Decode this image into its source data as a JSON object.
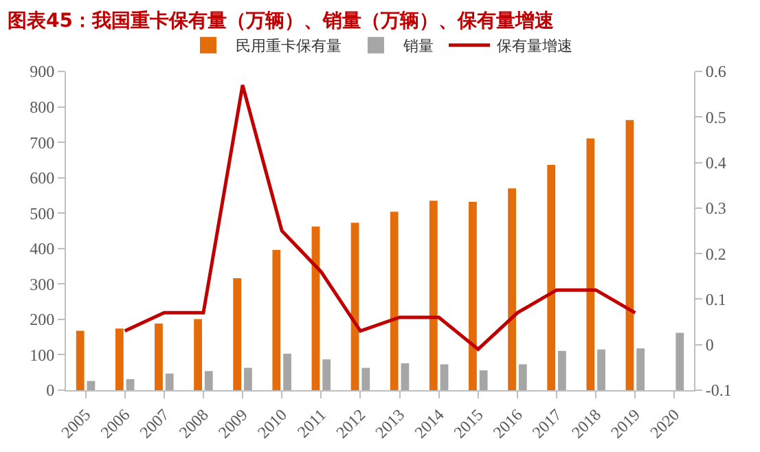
{
  "chart_data": {
    "type": "bar",
    "title": "图表45：我国重卡保有量（万辆）、销量（万辆）、保有量增速",
    "categories": [
      "2005",
      "2006",
      "2007",
      "2008",
      "2009",
      "2010",
      "2011",
      "2012",
      "2013",
      "2014",
      "2015",
      "2016",
      "2017",
      "2018",
      "2019",
      "2020"
    ],
    "series": [
      {
        "name": "民用重卡保有量",
        "color": "#e46c0a",
        "values": [
          168,
          174,
          188,
          201,
          316,
          396,
          462,
          473,
          504,
          535,
          532,
          570,
          636,
          711,
          763,
          null
        ]
      },
      {
        "name": "销量",
        "color": "#a6a6a6",
        "values": [
          26,
          31,
          47,
          54,
          63,
          103,
          87,
          63,
          76,
          73,
          56,
          73,
          111,
          115,
          118,
          162
        ]
      },
      {
        "name": "保有量增速",
        "type": "line",
        "axis": "y2",
        "color": "#c00000",
        "values": [
          null,
          0.03,
          0.07,
          0.07,
          0.57,
          0.25,
          0.16,
          0.03,
          0.06,
          0.06,
          -0.01,
          0.07,
          0.12,
          0.12,
          0.07,
          null
        ]
      }
    ],
    "ylim": [
      0,
      900
    ],
    "yticks": [
      0,
      100,
      200,
      300,
      400,
      500,
      600,
      700,
      800,
      900
    ],
    "y2lim": [
      -0.1,
      0.6
    ],
    "y2ticks": [
      -0.1,
      0,
      0.1,
      0.2,
      0.3,
      0.4,
      0.5,
      0.6
    ],
    "legend": "top",
    "grid": false
  }
}
